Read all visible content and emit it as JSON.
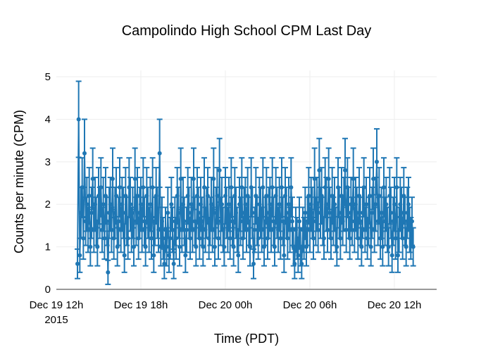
{
  "chart_data": {
    "type": "scatter",
    "mode": "lines+markers+error_bars",
    "title": "Campolindo High School CPM Last Day",
    "xlabel": "Time (PDT)",
    "ylabel": "Counts per minute (CPM)",
    "xlim": [
      "2015-12-19T12:00",
      "2015-12-20T15:00"
    ],
    "ylim": [
      0,
      5.15
    ],
    "grid": true,
    "legend": "none",
    "x_ticks": [
      {
        "value": "2015-12-19T12:00",
        "label": "Dec 19 12h",
        "sublabel": "2015"
      },
      {
        "value": "2015-12-19T18:00",
        "label": "Dec 19 18h"
      },
      {
        "value": "2015-12-20T00:00",
        "label": "Dec 20 00h"
      },
      {
        "value": "2015-12-20T06:00",
        "label": "Dec 20 06h"
      },
      {
        "value": "2015-12-20T12:00",
        "label": "Dec 20 12h"
      }
    ],
    "y_ticks": [
      0,
      1,
      2,
      3,
      4,
      5
    ],
    "series": [
      {
        "name": "CPM",
        "color": "#1f77b4",
        "x_start": "2015-12-19T13:30",
        "x_step_minutes": 5,
        "values": [
          0.6,
          4.0,
          0.8,
          1.8,
          2.4,
          1.2,
          3.2,
          1.6,
          2.0,
          1.4,
          2.2,
          1.0,
          1.8,
          2.6,
          1.4,
          2.0,
          1.6,
          1.0,
          2.2,
          1.8,
          2.4,
          1.4,
          2.0,
          1.2,
          2.2,
          1.6,
          0.4,
          1.8,
          2.0,
          1.4,
          2.6,
          1.2,
          1.8,
          2.2,
          1.0,
          1.6,
          2.4,
          1.4,
          2.0,
          1.8,
          0.8,
          2.2,
          1.6,
          1.2,
          2.4,
          2.0,
          1.4,
          1.8,
          1.0,
          2.6,
          1.6,
          2.2,
          1.2,
          1.8,
          2.0,
          1.4,
          2.4,
          1.6,
          1.0,
          2.2,
          1.8,
          1.4,
          2.0,
          1.2,
          2.4,
          0.8,
          1.6,
          2.2,
          1.8,
          1.4,
          3.2,
          1.0,
          1.6,
          1.2,
          0.6,
          1.4,
          1.0,
          1.8,
          0.8,
          1.2,
          2.0,
          1.4,
          0.6,
          1.6,
          1.2,
          2.2,
          1.8,
          1.0,
          2.6,
          1.4,
          2.0,
          1.6,
          0.8,
          1.4,
          2.2,
          1.8,
          1.2,
          2.0,
          1.4,
          2.6,
          1.6,
          1.0,
          2.2,
          1.8,
          1.2,
          2.0,
          1.6,
          1.0,
          2.4,
          1.4,
          1.8,
          2.2,
          1.2,
          1.6,
          2.0,
          1.4,
          2.6,
          1.0,
          1.8,
          2.2,
          1.2,
          2.8,
          1.6,
          2.0,
          1.4,
          1.0,
          2.2,
          1.8,
          1.4,
          2.0,
          1.2,
          2.4,
          1.6,
          1.0,
          2.2,
          1.8,
          1.4,
          0.8,
          2.0,
          1.6,
          2.4,
          1.2,
          1.8,
          2.0,
          1.4,
          2.2,
          1.6,
          1.0,
          2.4,
          1.8,
          0.6,
          1.4,
          2.2,
          1.6,
          1.2,
          2.0,
          1.8,
          1.4,
          2.4,
          1.0,
          1.6,
          2.2,
          1.2,
          1.8,
          2.0,
          1.4,
          2.4,
          1.6,
          1.0,
          2.2,
          1.8,
          1.4,
          2.0,
          1.2,
          2.4,
          1.6,
          0.8,
          2.2,
          1.8,
          1.2,
          2.0,
          1.4,
          2.4,
          1.6,
          1.0,
          0.6,
          1.4,
          1.2,
          0.8,
          1.6,
          1.0,
          0.6,
          1.4,
          1.2,
          1.8,
          1.0,
          1.6,
          2.2,
          1.4,
          2.0,
          1.8,
          1.2,
          2.6,
          1.6,
          2.0,
          1.4,
          2.8,
          1.8,
          2.2,
          1.6,
          1.2,
          2.4,
          2.0,
          1.4,
          2.6,
          1.8,
          1.2,
          2.2,
          1.6,
          2.0,
          1.4,
          1.0,
          2.4,
          1.8,
          1.2,
          2.2,
          1.6,
          2.0,
          2.8,
          1.4,
          2.4,
          1.8,
          1.2,
          2.0,
          1.6,
          2.6,
          1.4,
          2.0,
          1.8,
          1.2,
          2.2,
          1.6,
          1.0,
          1.8,
          2.4,
          1.4,
          2.0,
          1.2,
          1.6,
          2.2,
          1.0,
          1.8,
          2.6,
          1.4,
          2.0,
          3.0,
          1.6,
          2.2,
          1.2,
          1.8,
          1.0,
          2.4,
          1.6,
          2.0,
          1.4,
          1.0,
          2.2,
          1.8,
          0.8,
          1.6,
          2.0,
          1.2,
          2.4,
          0.8,
          1.4,
          2.0,
          1.8,
          1.2,
          2.2,
          1.6,
          1.0,
          1.8,
          2.0,
          1.4,
          1.2,
          1.6,
          1.0
        ]
      }
    ]
  }
}
